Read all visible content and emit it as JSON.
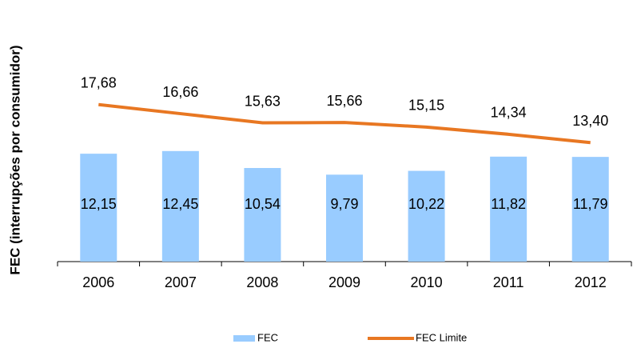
{
  "chart_data": {
    "type": "bar",
    "y_label": "FEC (interrupções por consumidor)",
    "categories": [
      "2006",
      "2007",
      "2008",
      "2009",
      "2010",
      "2011",
      "2012"
    ],
    "series": [
      {
        "name": "FEC",
        "type": "bar",
        "color": "#99ccff",
        "values": [
          12.15,
          12.45,
          10.54,
          9.79,
          10.22,
          11.82,
          11.79
        ],
        "value_labels": [
          "12,15",
          "12,45",
          "10,54",
          "9,79",
          "10,22",
          "11,82",
          "11,79"
        ]
      },
      {
        "name": "FEC Limite",
        "type": "line",
        "color": "#e87722",
        "values": [
          17.68,
          16.66,
          15.63,
          15.66,
          15.15,
          14.34,
          13.4
        ],
        "value_labels": [
          "17,68",
          "16,66",
          "15,63",
          "15,66",
          "15,15",
          "14,34",
          "13,40"
        ]
      }
    ],
    "ylim": [
      0,
      20
    ]
  }
}
